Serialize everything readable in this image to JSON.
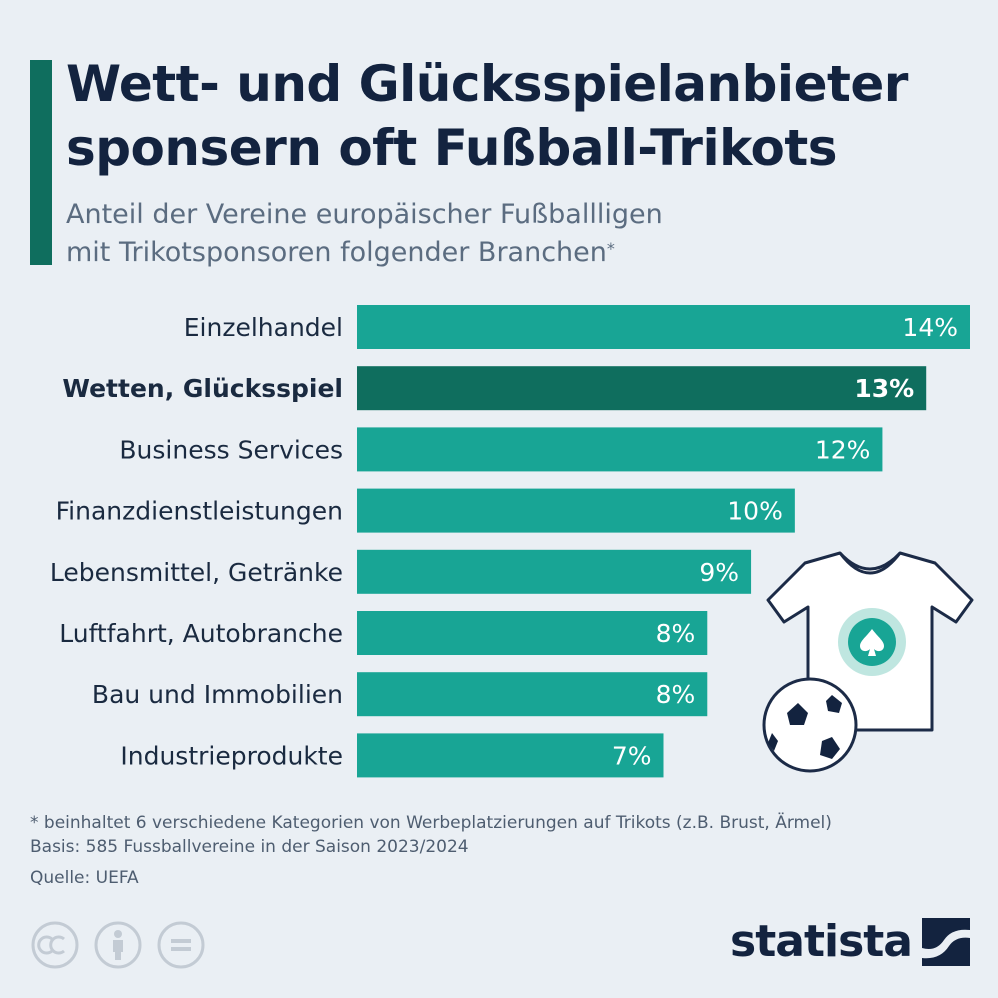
{
  "title_line1": "Wett- und Glücksspielanbieter",
  "title_line2": "sponsern oft Fußball-Trikots",
  "subtitle_line1": "Anteil der Vereine europäischer Fußballligen",
  "subtitle_line2": "mit Trikotsponsoren folgender Branchen",
  "subtitle_mark": "*",
  "footnote_line1": "* beinhaltet 6 verschiedene Kategorien von Werbeplatzierungen auf Trikots (z.B. Brust, Ärmel)",
  "footnote_line2": "Basis: 585 Fussballvereine in der Saison 2023/2024",
  "source": "Quelle: UEFA",
  "logo": "statista",
  "colors": {
    "bar": "#18a595",
    "highlight": "#0f6e5e",
    "label": "#1a2a40"
  },
  "chart_data": {
    "type": "bar",
    "orientation": "horizontal",
    "unit": "%",
    "highlight_index": 1,
    "categories": [
      "Einzelhandel",
      "Wetten, Glücksspiel",
      "Business Services",
      "Finanzdienstleistungen",
      "Lebensmittel, Getränke",
      "Luftfahrt, Autobranche",
      "Bau und Immobilien",
      "Industrieprodukte"
    ],
    "values": [
      14,
      13,
      12,
      10,
      9,
      8,
      8,
      7
    ],
    "value_labels": [
      "14%",
      "13%",
      "12%",
      "10%",
      "9%",
      "8%",
      "8%",
      "7%"
    ],
    "xlim": [
      0,
      14
    ]
  }
}
